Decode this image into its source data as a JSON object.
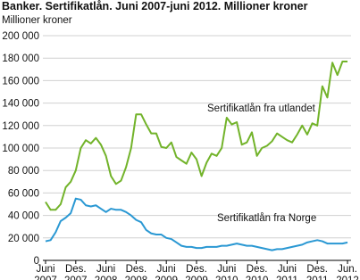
{
  "chart_data": {
    "type": "line",
    "title": "Banker. Sertifikatlån. Juni 2007-juni 2012. Millioner kroner",
    "y_axis_label": "Millioner kroner",
    "categories": [
      "Juni 2007",
      null,
      null,
      null,
      null,
      null,
      "Des. 2007",
      null,
      null,
      null,
      null,
      null,
      "Juni 2008",
      null,
      null,
      null,
      null,
      null,
      "Des. 2008",
      null,
      null,
      null,
      null,
      null,
      "Juni 2009",
      null,
      null,
      null,
      null,
      null,
      "Des. 2009",
      null,
      null,
      null,
      null,
      null,
      "Juni 2010",
      null,
      null,
      null,
      null,
      null,
      "Des. 2010",
      null,
      null,
      null,
      null,
      null,
      "Juni 2011",
      null,
      null,
      null,
      null,
      null,
      "Des. 2011",
      null,
      null,
      null,
      null,
      null,
      "Jun. 2012"
    ],
    "series": [
      {
        "name": "Sertifikatlån fra utlandet",
        "color": "#72b32a",
        "values": [
          52000,
          45000,
          45000,
          50000,
          65000,
          70000,
          80000,
          100000,
          107000,
          104000,
          109000,
          103000,
          93000,
          75000,
          68000,
          71000,
          83000,
          100000,
          130000,
          130000,
          121000,
          113000,
          113000,
          101000,
          100000,
          105000,
          92000,
          89000,
          86000,
          96000,
          90000,
          75000,
          87000,
          95000,
          93000,
          100000,
          127000,
          121000,
          123000,
          103000,
          105000,
          114000,
          93000,
          100000,
          102000,
          106000,
          113000,
          110000,
          107000,
          105000,
          112000,
          120000,
          112000,
          122000,
          120000,
          155000,
          145000,
          176000,
          165000,
          177000,
          177000
        ]
      },
      {
        "name": "Sertifikatlån fra Norge",
        "color": "#2a98d3",
        "values": [
          17000,
          18000,
          25000,
          35000,
          38000,
          42000,
          55000,
          54000,
          49000,
          48000,
          49000,
          46000,
          43000,
          46000,
          45000,
          45000,
          43000,
          40000,
          36000,
          34000,
          27000,
          24000,
          23000,
          23000,
          20000,
          19000,
          16000,
          13000,
          12000,
          12000,
          11000,
          11000,
          12000,
          12000,
          12000,
          13000,
          13000,
          14000,
          15000,
          14000,
          13000,
          13000,
          12000,
          11000,
          10000,
          9000,
          10000,
          10000,
          11000,
          12000,
          13000,
          14000,
          16000,
          17000,
          18000,
          17000,
          15000,
          15000,
          15000,
          15000,
          16000
        ]
      }
    ],
    "ylim": [
      0,
      200000
    ],
    "yticks": [
      0,
      {
        "value": 20000,
        "label": "20 000"
      },
      {
        "value": 40000,
        "label": "40 000"
      },
      {
        "value": 60000,
        "label": "60 000"
      },
      {
        "value": 80000,
        "label": "80 000"
      },
      {
        "value": 100000,
        "label": "100 000"
      },
      {
        "value": 120000,
        "label": "120 000"
      },
      {
        "value": 140000,
        "label": "140 000"
      },
      {
        "value": 160000,
        "label": "160 000"
      },
      {
        "value": 180000,
        "label": "180 000"
      },
      {
        "value": 200000,
        "label": "200 000"
      }
    ],
    "grid": true
  }
}
